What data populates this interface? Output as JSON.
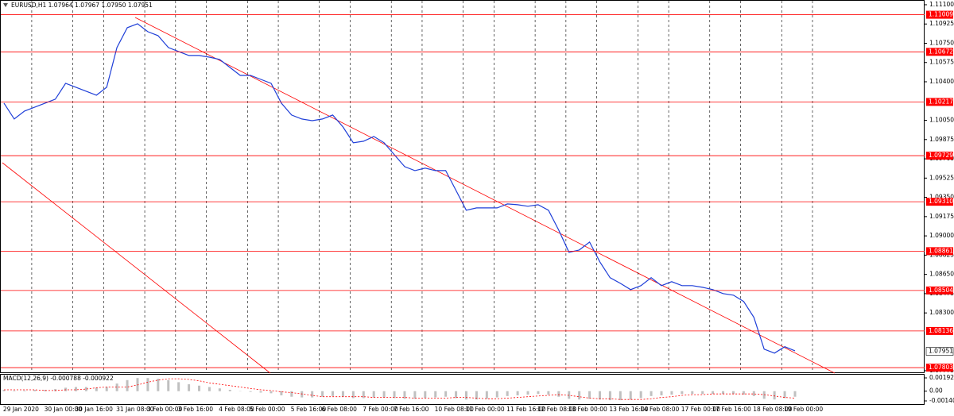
{
  "chart_data": [
    {
      "type": "line",
      "title": "EURUSD,H1  1.07964 1.07967 1.07950 1.07951",
      "color": "#1f3fd8",
      "x": [
        null,
        "29 Jan 2020",
        null,
        null,
        null,
        "30 Jan 00:00",
        null,
        null,
        "30 Jan 16:00",
        null,
        null,
        null,
        "31 Jan 08:00",
        null,
        null,
        "3 Feb 00:00",
        null,
        null,
        "3 Feb 16:00",
        null,
        null,
        null,
        "4 Feb 08:00",
        null,
        null,
        "5 Feb 00:00",
        null,
        null,
        null,
        "5 Feb 16:00",
        null,
        null,
        "6 Feb 08:00",
        null,
        null,
        null,
        "7 Feb 00:00",
        null,
        null,
        "7 Feb 16:00",
        null,
        null,
        null,
        "10 Feb 08:00",
        null,
        null,
        "11 Feb 00:00",
        null,
        null,
        null,
        "11 Feb 16:00",
        null,
        null,
        "12 Feb 08:00",
        null,
        null,
        "13 Feb 00:00",
        null,
        null,
        null,
        "13 Feb 16:00",
        null,
        null,
        "14 Feb 08:00",
        null,
        null,
        null,
        "17 Feb 00:00",
        null,
        null,
        "17 Feb 16:00",
        null,
        null,
        null,
        "18 Feb 08:00",
        null,
        null,
        "19 Feb 00:00"
      ],
      "values": [
        1.10206,
        1.10062,
        1.10134,
        1.1017,
        1.10206,
        1.10242,
        1.10386,
        1.1035,
        1.10314,
        1.10278,
        1.1035,
        1.10711,
        1.10891,
        1.10927,
        1.10855,
        1.10819,
        1.10711,
        1.10675,
        1.10639,
        1.10639,
        1.10624,
        1.10603,
        1.1053,
        1.10458,
        1.10458,
        1.10422,
        1.10386,
        1.10206,
        1.10098,
        1.10062,
        1.10047,
        1.10062,
        1.10098,
        1.0999,
        1.09846,
        1.0986,
        1.09903,
        1.09846,
        1.09737,
        1.09629,
        1.09593,
        1.09615,
        1.09593,
        1.09593,
        1.09413,
        1.09233,
        1.09254,
        1.09254,
        1.09254,
        1.0929,
        1.09283,
        1.09269,
        1.09283,
        1.09233,
        1.09052,
        1.08851,
        1.08872,
        1.08944,
        1.08764,
        1.0862,
        1.08569,
        1.08512,
        1.08548,
        1.0862,
        1.08548,
        1.08584,
        1.08548,
        1.08548,
        1.08533,
        1.08512,
        1.08476,
        1.08461,
        1.08404,
        1.08259,
        1.07971,
        1.07935,
        1.07993,
        1.07956
      ],
      "ylim": [
        1.07753,
        1.11143
      ],
      "yticks": [
        {
          "value": 1.111,
          "label": "1.11100"
        },
        1.10925,
        {
          "value": 1.1075,
          "label": "1.10750"
        },
        1.10575,
        {
          "value": 1.104,
          "label": "1.10400"
        },
        {
          "value": 1.1005,
          "label": "1.10050"
        },
        1.09875,
        {
          "value": 1.097,
          "label": "1.09700"
        },
        1.09525,
        {
          "value": 1.0935,
          "label": "1.09350"
        },
        1.09175,
        {
          "value": 1.09,
          "label": "1.09000"
        },
        1.08825,
        {
          "value": 1.0865,
          "label": "1.08650"
        },
        1.08475,
        {
          "value": 1.083,
          "label": "1.08300"
        },
        1.07775
      ],
      "levels": [
        1.11009,
        1.10672,
        1.10217,
        1.09729,
        {
          "value": 1.0931,
          "label": "1.09310"
        },
        1.08861,
        1.08504,
        1.08136,
        1.07803
      ],
      "level_color": "#ff0000",
      "last_price": 1.07951,
      "grid": true
    },
    {
      "type": "macd",
      "title": "MACD(12,26,9) -0.000788 -0.000922",
      "color": "#c0c0c0",
      "signal_color": "#ff0000",
      "values": [
        0.0002,
        0.0001,
        0.0001,
        0.0002,
        0.0002,
        0.0003,
        0.0005,
        0.0006,
        0.0006,
        0.0005,
        0.0006,
        0.0011,
        0.0016,
        0.0019,
        0.0019,
        0.0018,
        0.0016,
        0.0013,
        0.001,
        0.0008,
        0.0006,
        0.0004,
        0.0002,
        0,
        -0.0001,
        -0.0002,
        -0.0003,
        -0.0006,
        -0.0008,
        -0.0009,
        -0.0009,
        -0.0008,
        -0.0007,
        -0.0008,
        -0.001,
        -0.001,
        -0.0009,
        -0.0009,
        -0.001,
        -0.0011,
        -0.0011,
        -0.001,
        -0.0009,
        -0.0008,
        -0.001,
        -0.0012,
        -0.0012,
        -0.0011,
        -0.0009,
        -0.0007,
        -0.0006,
        -0.0005,
        -0.0004,
        -0.0005,
        -0.0008,
        -0.0011,
        -0.0012,
        -0.0011,
        -0.0012,
        -0.0013,
        -0.0013,
        -0.0012,
        -0.001,
        -0.0007,
        -0.0006,
        -0.0005,
        -0.0004,
        -0.0004,
        -0.0004,
        -0.0004,
        -0.0004,
        -0.0004,
        -0.0005,
        -0.0007,
        -0.0011,
        -0.0012,
        -0.001,
        -0.0008
      ],
      "signal": [
        0.0002,
        0.0002,
        0.0002,
        0.0002,
        0.0001,
        0.0001,
        0.0002,
        0.0002,
        0.0003,
        0.0005,
        0.0006,
        0.0006,
        0.0006,
        0.0009,
        0.0013,
        0.0016,
        0.0018,
        0.0018,
        0.0017,
        0.0015,
        0.0012,
        0.001,
        0.0008,
        0.0006,
        0.0004,
        0.0002,
        0.0001,
        -0.0001,
        -0.0002,
        -0.0004,
        -0.0006,
        -0.0008,
        -0.0008,
        -0.0008,
        -0.0008,
        -0.0008,
        -0.0009,
        -0.0009,
        -0.0009,
        -0.0009,
        -0.001,
        -0.001,
        -0.001,
        -0.001,
        -0.0009,
        -0.0009,
        -0.001,
        -0.0011,
        -0.0011,
        -0.001,
        -0.0009,
        -0.0008,
        -0.0007,
        -0.0006,
        -0.0005,
        -0.0006,
        -0.0008,
        -0.001,
        -0.0011,
        -0.0011,
        -0.0012,
        -0.0012,
        -0.0012,
        -0.0011,
        -0.0009,
        -0.0008,
        -0.0006,
        -0.0005,
        -0.0005,
        -0.0004,
        -0.0004,
        -0.0004,
        -0.0004,
        -0.0004,
        -0.0005,
        -0.0007,
        -0.0009,
        -0.001
      ],
      "ylim": [
        -0.00198,
        0.00238
      ],
      "yticks": [
        0.001921,
        {
          "value": 0,
          "label": "0.00"
        },
        -0.001405
      ]
    }
  ]
}
